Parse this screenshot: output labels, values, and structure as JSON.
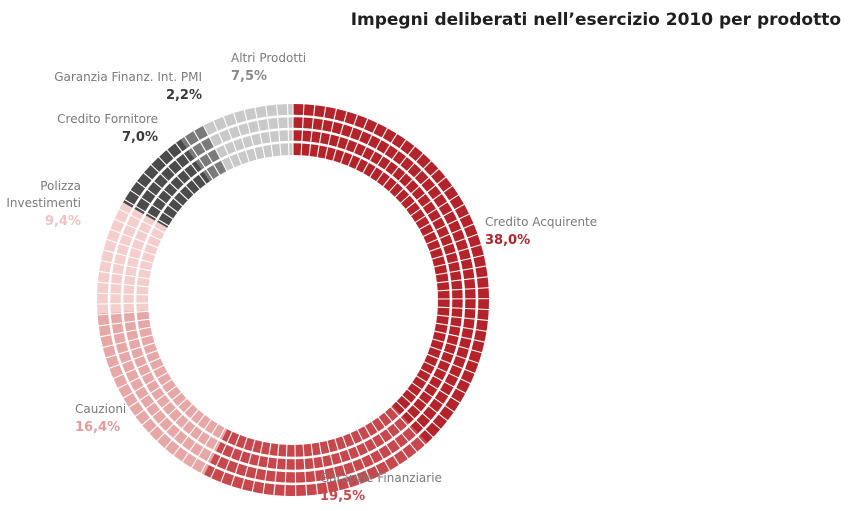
{
  "chart_data": {
    "type": "pie",
    "donut": true,
    "title": "Impegni deliberati nell’esercizio 2010 per prodotto",
    "unit": "%",
    "slices": [
      {
        "label": "Credito Acquirente",
        "value": 38.0,
        "value_label": "38,0%",
        "color": "#b5232a",
        "label_color": "#b5232a"
      },
      {
        "label": "Garanzie Finanziarie",
        "value": 19.5,
        "value_label": "19,5%",
        "color": "#c8474c",
        "label_color": "#c8474c"
      },
      {
        "label": "Cauzioni",
        "value": 16.4,
        "value_label": "16,4%",
        "color": "#e7a7a6",
        "label_color": "#e79a9a"
      },
      {
        "label": "Polizza Investimenti",
        "label_lines": [
          "Polizza",
          "Investimenti"
        ],
        "value": 9.4,
        "value_label": "9,4%",
        "color": "#f4cecc",
        "label_color": "#f3c2c0"
      },
      {
        "label": "Credito Fornitore",
        "value": 7.0,
        "value_label": "7,0%",
        "color": "#4b4b4b",
        "label_color": "#3a3a3a"
      },
      {
        "label": "Garanzia Finanz. Int. PMI",
        "value": 2.2,
        "value_label": "2,2%",
        "color": "#7a7a7a",
        "label_color": "#3a3a3a"
      },
      {
        "label": "Altri Prodotti",
        "value": 7.5,
        "value_label": "7,5%",
        "color": "#c9c9c9",
        "label_color": "#8a8a8a"
      }
    ]
  }
}
